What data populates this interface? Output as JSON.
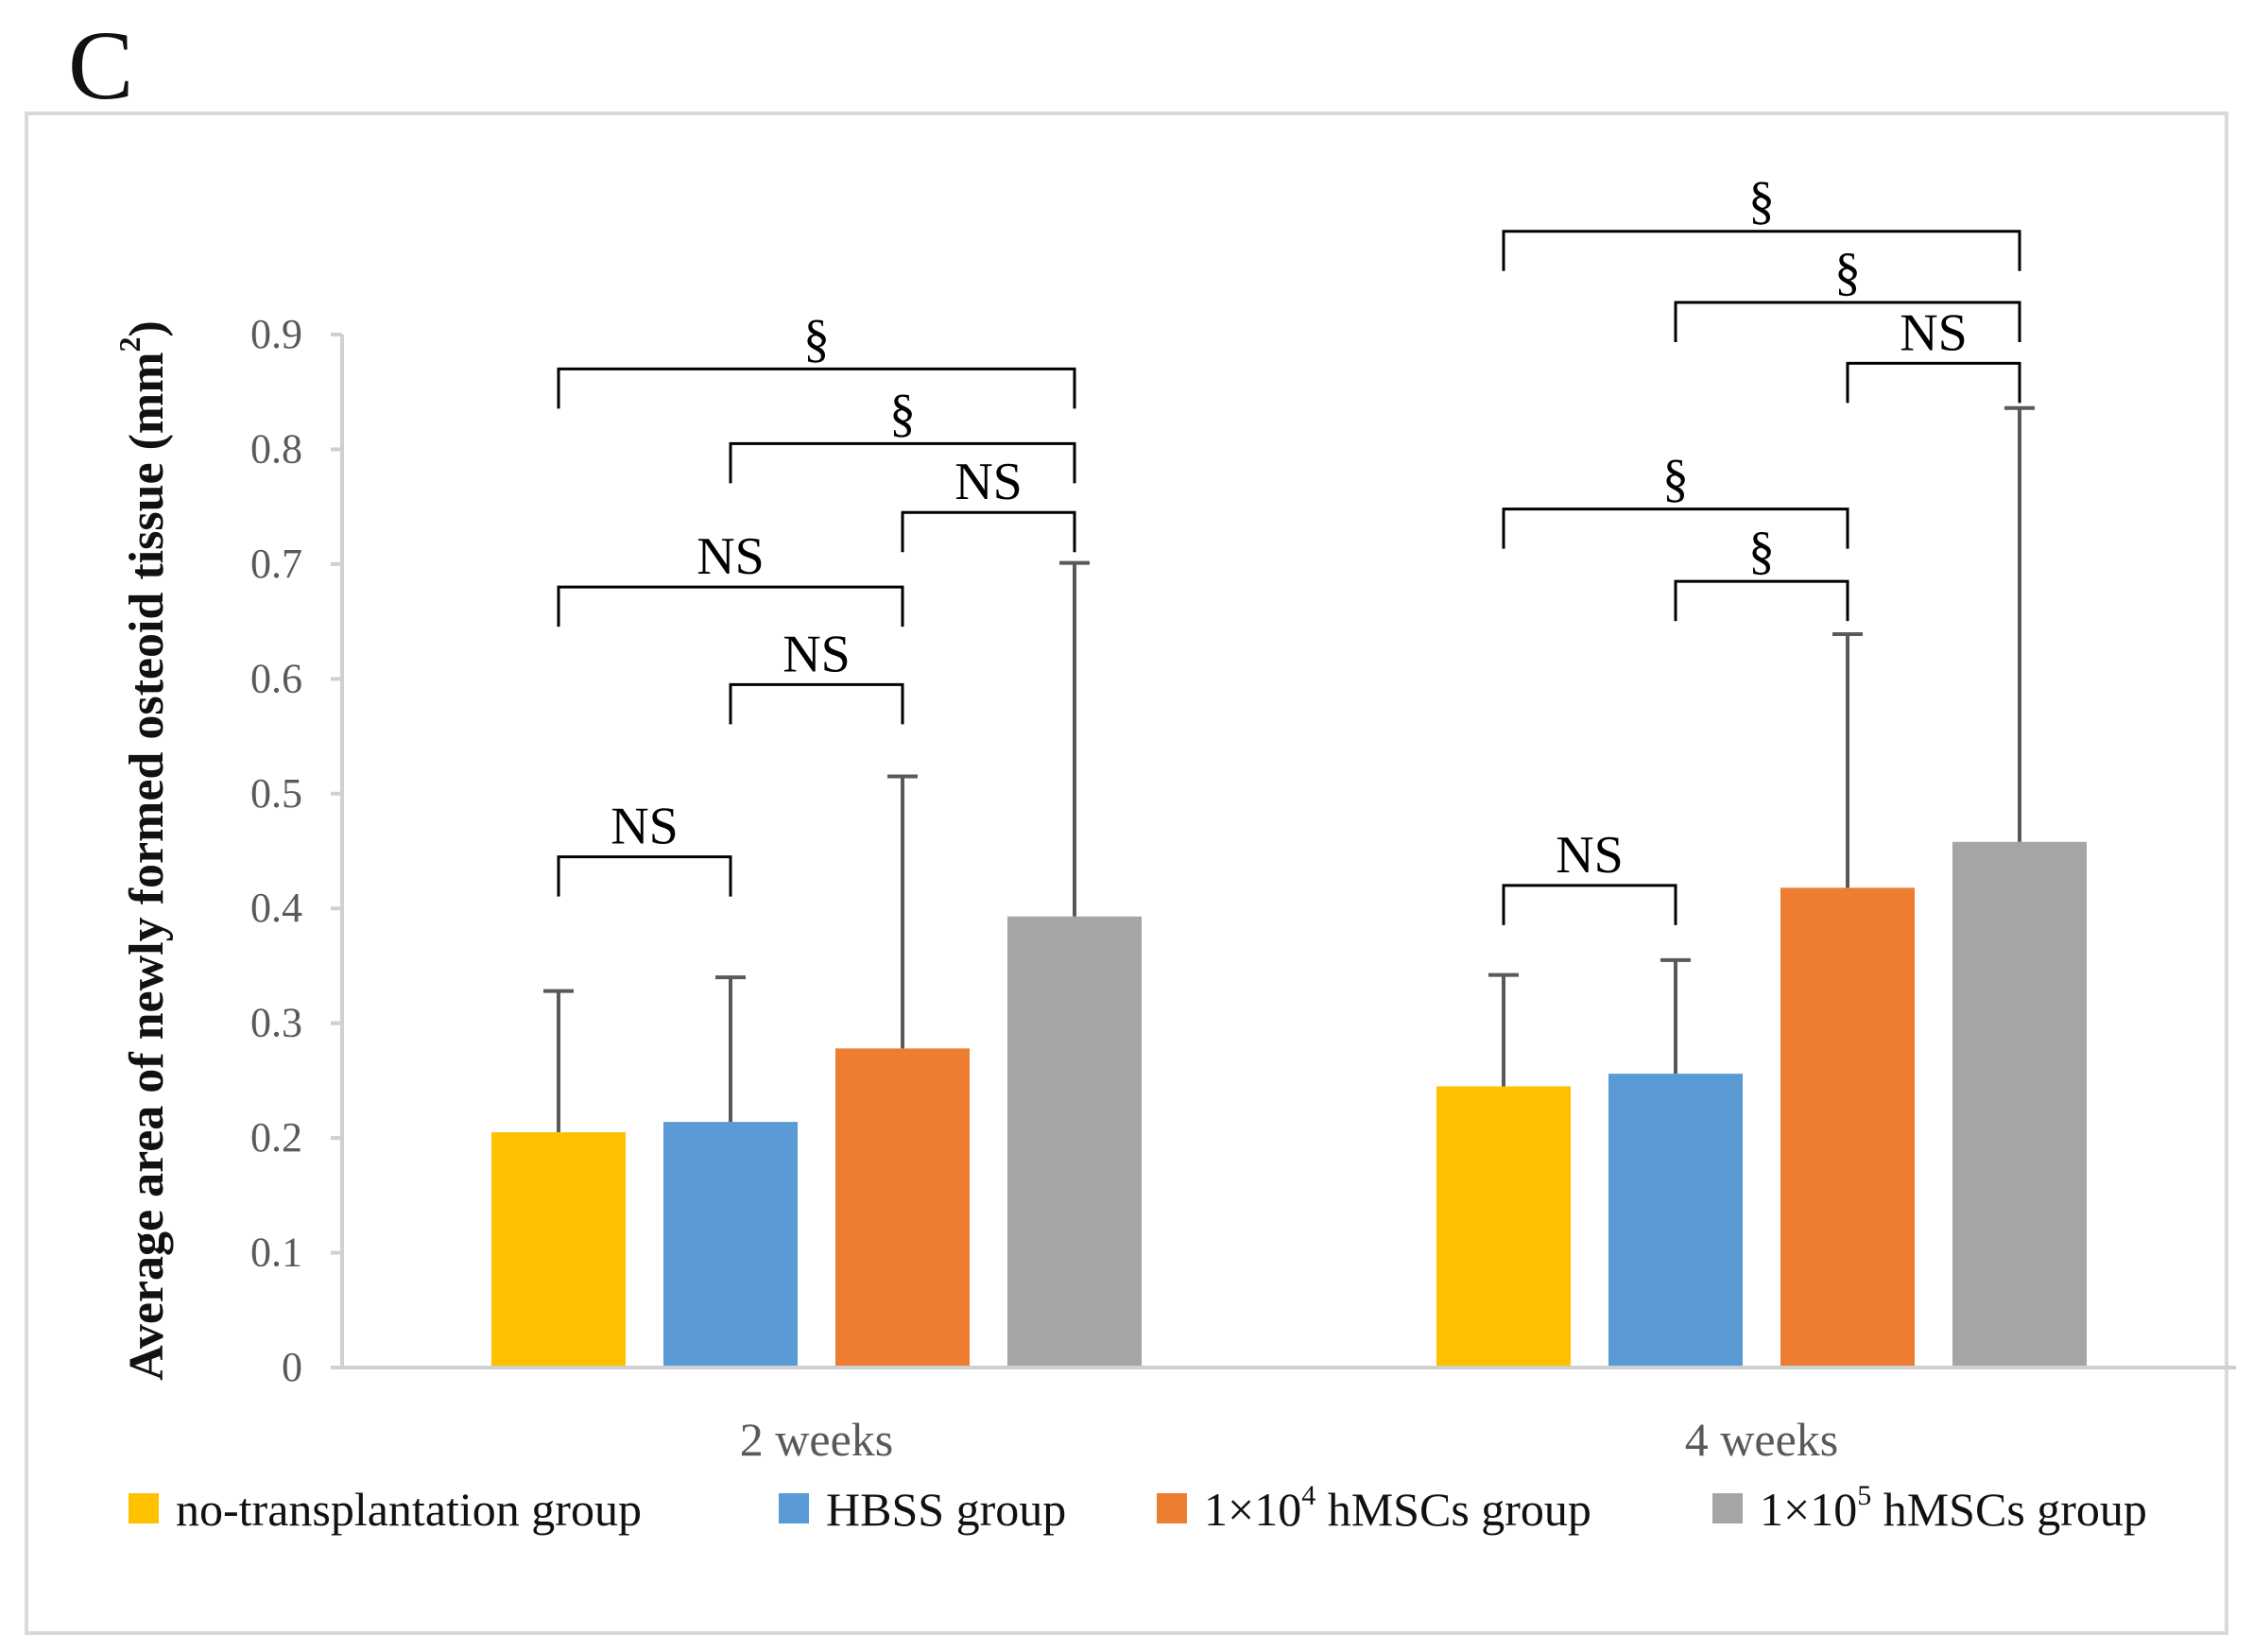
{
  "panel_label": "C",
  "chart_data": {
    "type": "bar",
    "title": "",
    "ylabel": "Average area of newly formed osteoid tissue (mm",
    "ylabel_superscript": "2",
    "ylabel_close": ")",
    "xlabel": "",
    "ylim": [
      0,
      0.9
    ],
    "yticks": [
      0,
      0.1,
      0.2,
      0.3,
      0.4,
      0.5,
      0.6,
      0.7,
      0.8,
      0.9
    ],
    "ytick_labels": [
      "0",
      "0.1",
      "0.2",
      "0.3",
      "0.4",
      "0.5",
      "0.6",
      "0.7",
      "0.8",
      "0.9"
    ],
    "categories": [
      "2 weeks",
      "4 weeks"
    ],
    "series": [
      {
        "name": "no-transplantation group",
        "color": "#FFC000",
        "values": [
          0.205,
          0.245
        ],
        "errors": [
          0.123,
          0.097
        ]
      },
      {
        "name": "HBSS group",
        "color": "#5B9BD5",
        "values": [
          0.214,
          0.256
        ],
        "errors": [
          0.126,
          0.099
        ]
      },
      {
        "name": "1×10^4 hMSCs group",
        "color": "#ED7D31",
        "values": [
          0.278,
          0.418
        ],
        "errors": [
          0.237,
          0.221
        ]
      },
      {
        "name": "1×10^5 hMSCs group",
        "color": "#A5A5A5",
        "values": [
          0.393,
          0.458
        ],
        "errors": [
          0.308,
          0.378
        ]
      }
    ],
    "legend": [
      {
        "prefix": "no-transplantation group",
        "sup": "",
        "suffix": "",
        "color": "#FFC000"
      },
      {
        "prefix": "HBSS group",
        "sup": "",
        "suffix": "",
        "color": "#5B9BD5"
      },
      {
        "prefix": "1×10",
        "sup": "4",
        "suffix": " hMSCs group",
        "color": "#ED7D31"
      },
      {
        "prefix": "1×10",
        "sup": "5",
        "suffix": " hMSCs group",
        "color": "#A5A5A5"
      }
    ],
    "legend_position": "bottom",
    "annotations": [
      {
        "category": 0,
        "from": 0,
        "to": 1,
        "level": 0.445,
        "label": "NS"
      },
      {
        "category": 0,
        "from": 1,
        "to": 2,
        "level": 0.595,
        "label": "NS"
      },
      {
        "category": 0,
        "from": 0,
        "to": 2,
        "level": 0.68,
        "label": "NS"
      },
      {
        "category": 0,
        "from": 2,
        "to": 3,
        "level": 0.745,
        "label": "NS"
      },
      {
        "category": 0,
        "from": 1,
        "to": 3,
        "level": 0.805,
        "label": "§"
      },
      {
        "category": 0,
        "from": 0,
        "to": 3,
        "level": 0.87,
        "label": "§"
      },
      {
        "category": 1,
        "from": 0,
        "to": 1,
        "level": 0.42,
        "label": "NS"
      },
      {
        "category": 1,
        "from": 1,
        "to": 2,
        "level": 0.685,
        "label": "§"
      },
      {
        "category": 1,
        "from": 0,
        "to": 2,
        "level": 0.748,
        "label": "§"
      },
      {
        "category": 1,
        "from": 2,
        "to": 3,
        "level": 0.875,
        "label": "NS"
      },
      {
        "category": 1,
        "from": 1,
        "to": 3,
        "level": 0.928,
        "label": "§"
      },
      {
        "category": 1,
        "from": 0,
        "to": 3,
        "level": 0.99,
        "label": "§"
      }
    ]
  }
}
